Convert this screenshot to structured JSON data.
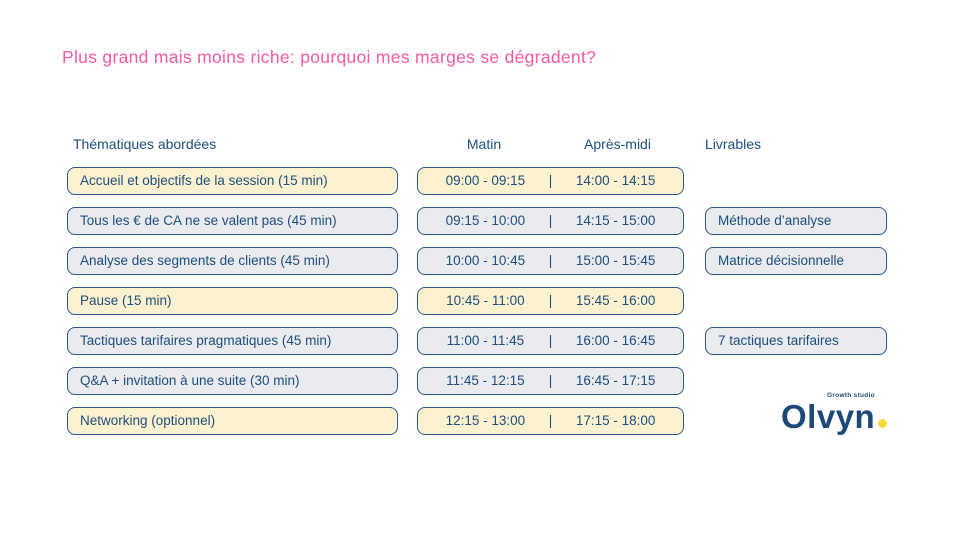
{
  "title": "Plus grand mais moins riche: pourquoi mes marges se dégradent?",
  "columns": {
    "topics": "Thématiques abordées",
    "morning": "Matin",
    "afternoon": "Après-midi",
    "deliverables": "Livrables"
  },
  "time_separator": "|",
  "rows": [
    {
      "topic": "Accueil et objectifs de la session (15 min)",
      "morning": "09:00 - 09:15",
      "afternoon": "14:00 - 14:15",
      "highlight": true,
      "deliverable": ""
    },
    {
      "topic": "Tous les € de CA ne se valent pas (45 min)",
      "morning": "09:15 - 10:00",
      "afternoon": "14:15 - 15:00",
      "highlight": false,
      "deliverable": "Méthode d’analyse"
    },
    {
      "topic": "Analyse des segments de clients (45 min)",
      "morning": "10:00 - 10:45",
      "afternoon": "15:00 - 15:45",
      "highlight": false,
      "deliverable": "Matrice décisionnelle"
    },
    {
      "topic": "Pause (15 min)",
      "morning": "10:45 - 11:00",
      "afternoon": "15:45 - 16:00",
      "highlight": true,
      "deliverable": ""
    },
    {
      "topic": "Tactiques tarifaires pragmatiques (45 min)",
      "morning": "11:00 - 11:45",
      "afternoon": "16:00 - 16:45",
      "highlight": false,
      "deliverable": "7 tactiques tarifaires"
    },
    {
      "topic": "Q&A + invitation à une suite (30 min)",
      "morning": "11:45 - 12:15",
      "afternoon": "16:45 - 17:15",
      "highlight": false,
      "deliverable": ""
    },
    {
      "topic": "Networking (optionnel)",
      "morning": "12:15 - 13:00",
      "afternoon": "17:15 - 18:00",
      "highlight": true,
      "deliverable": ""
    }
  ],
  "logo": {
    "name": "Olvyn",
    "tagline": "Growth studio"
  },
  "colors": {
    "accent_pink": "#f859a2",
    "text_blue": "#1e4e7d",
    "border_blue": "#2a578b",
    "highlight_yellow": "#fcf2cf",
    "row_gray": "#e9ebee",
    "logo_blue": "#1d4878",
    "logo_yellow": "#fbd93d"
  }
}
